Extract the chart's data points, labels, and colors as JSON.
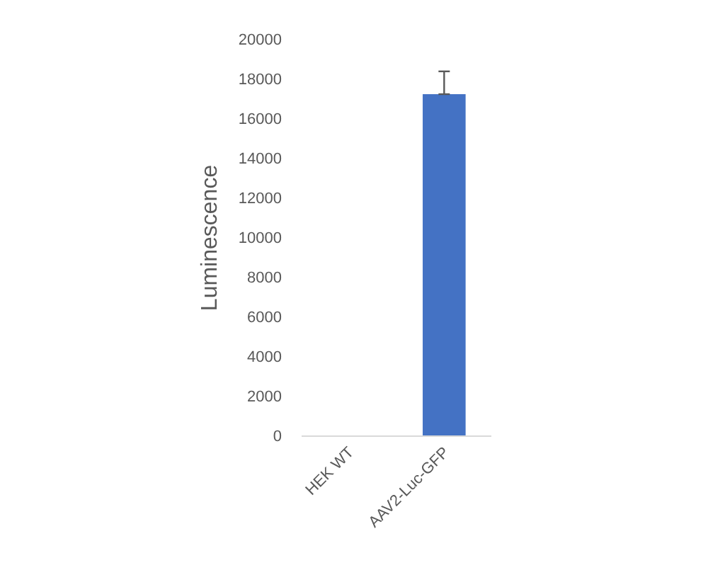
{
  "chart_data": {
    "type": "bar",
    "ylabel": "Luminescence",
    "categories": [
      "HEK WT",
      "AAV2-Luc-GFP"
    ],
    "values": [
      0,
      17250
    ],
    "errors": [
      null,
      [
        17250,
        18400
      ]
    ],
    "color": "#4472c4",
    "ylim": [
      0,
      20000
    ],
    "yticks": [
      0,
      2000,
      4000,
      6000,
      8000,
      10000,
      12000,
      14000,
      16000,
      18000,
      20000
    ],
    "grid": false
  }
}
